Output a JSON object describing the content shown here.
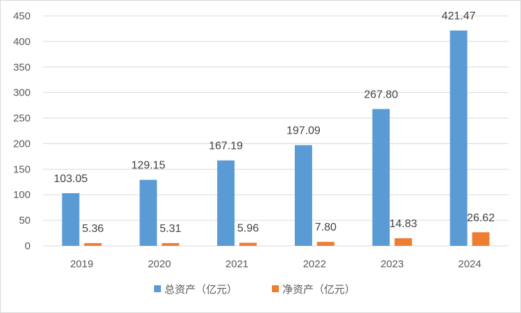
{
  "chart_data": {
    "type": "bar",
    "categories": [
      "2019",
      "2020",
      "2021",
      "2022",
      "2023",
      "2024"
    ],
    "series": [
      {
        "name": "总资产（亿元）",
        "values": [
          103.05,
          129.15,
          167.19,
          197.09,
          267.8,
          421.47
        ],
        "labels": [
          "103.05",
          "129.15",
          "167.19",
          "197.09",
          "267.80",
          "421.47"
        ],
        "color": "#5b9bd5"
      },
      {
        "name": "净资产（亿元）",
        "values": [
          5.36,
          5.31,
          5.96,
          7.8,
          14.83,
          26.62
        ],
        "labels": [
          "5.36",
          "5.31",
          "5.96",
          "7.80",
          "14.83",
          "26.62"
        ],
        "color": "#ed7d31"
      }
    ],
    "yticks": [
      "0",
      "50",
      "100",
      "150",
      "200",
      "250",
      "300",
      "350",
      "400",
      "450"
    ],
    "ylim": [
      0,
      450
    ],
    "grid": true,
    "legend": "bottom"
  }
}
